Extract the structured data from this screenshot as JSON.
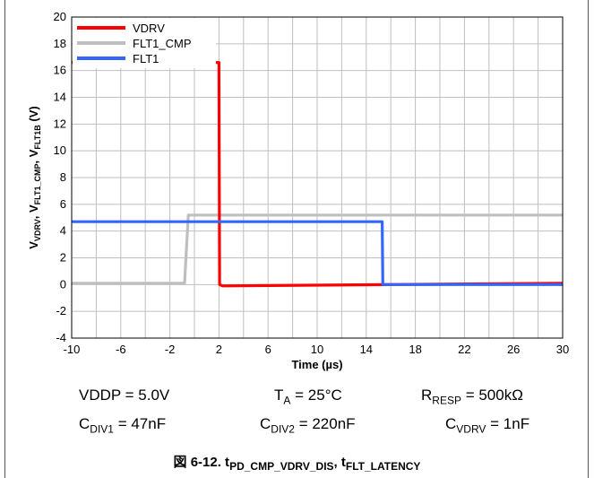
{
  "chart_data": {
    "type": "line",
    "xlabel": "Time (µs)",
    "ylabel": "VVDRV, VFLT1_CMP, VFLT1B (V)",
    "xlim": [
      -10,
      30
    ],
    "ylim": [
      -4,
      20
    ],
    "x_ticks": [
      "-10",
      "-6",
      "-2",
      "2",
      "6",
      "10",
      "14",
      "18",
      "22",
      "26",
      "30"
    ],
    "y_ticks": [
      "-4",
      "-2",
      "0",
      "2",
      "4",
      "6",
      "8",
      "10",
      "12",
      "14",
      "16",
      "18",
      "20"
    ],
    "grid": true,
    "legend_position": "top-left",
    "series": [
      {
        "name": "VDRV",
        "color": "#ff0000",
        "x": [
          -10,
          2.0,
          2.05,
          2.3,
          30
        ],
        "y": [
          16.6,
          16.6,
          0.0,
          -0.1,
          0.1
        ]
      },
      {
        "name": "FLT1_CMP",
        "color": "#bfbfbf",
        "x": [
          -10,
          -0.8,
          -0.5,
          30
        ],
        "y": [
          0.1,
          0.1,
          5.2,
          5.2
        ]
      },
      {
        "name": "FLT1",
        "color": "#3366ff",
        "x": [
          -10,
          15.3,
          15.35,
          30
        ],
        "y": [
          4.7,
          4.7,
          0.0,
          0.0
        ]
      }
    ]
  },
  "conditions": {
    "vddp": "VDDP = 5.0V",
    "ta_pre": "T",
    "ta_sub": "A",
    "ta_post": " = 25°C",
    "rresp_pre": "R",
    "rresp_sub": "RESP",
    "rresp_post": " = 500kΩ",
    "cdiv1_pre": "C",
    "cdiv1_sub": "DIV1",
    "cdiv1_post": " = 47nF",
    "cdiv2_pre": "C",
    "cdiv2_sub": "DIV2",
    "cdiv2_post": " = 220nF",
    "cvdrv_pre": "C",
    "cvdrv_sub": "VDRV",
    "cvdrv_post": " = 1nF"
  },
  "caption": {
    "prefix": "図 6-12. t",
    "sub1": "PD_CMP_VDRV_DIS",
    "mid": ", t",
    "sub2": "FLT_LATENCY"
  }
}
